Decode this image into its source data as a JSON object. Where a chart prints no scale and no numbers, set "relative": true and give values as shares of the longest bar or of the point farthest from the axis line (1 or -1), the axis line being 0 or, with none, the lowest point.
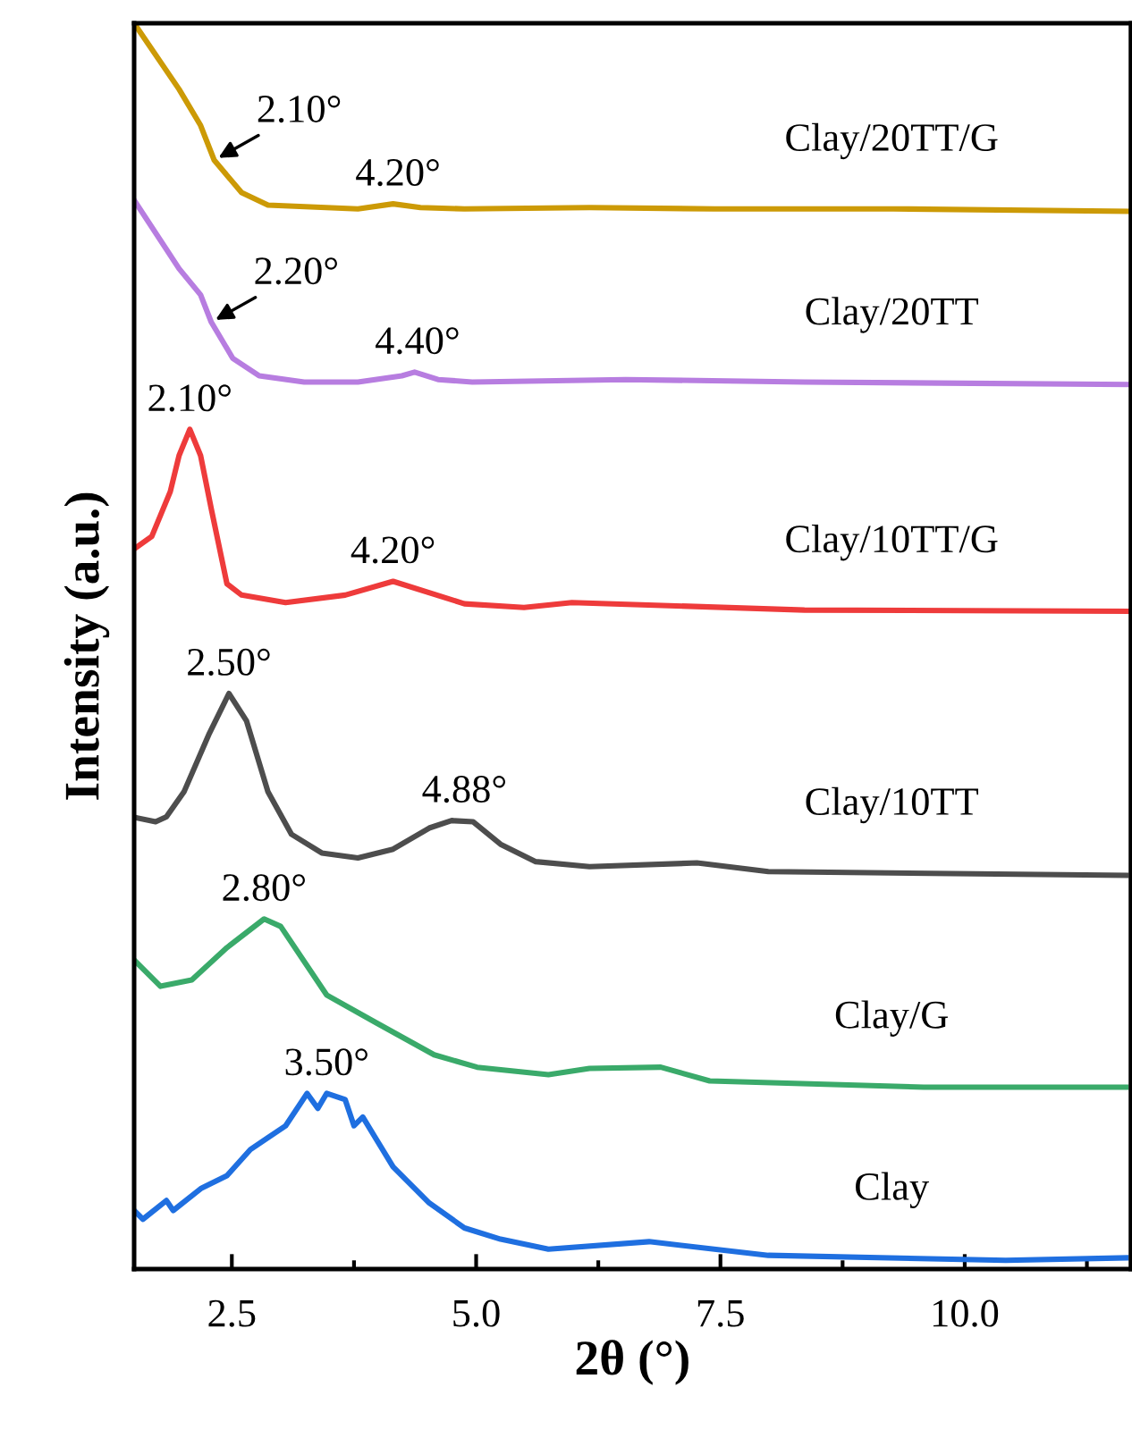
{
  "chart_data": {
    "type": "line",
    "relative": true,
    "xlabel": "2θ (°)",
    "ylabel": "Intensity (a.u.)",
    "xlim": [
      1.5,
      11.7
    ],
    "xticks": [
      {
        "value": 2.5,
        "label": "2.5"
      },
      {
        "value": 3.75,
        "label": null
      },
      {
        "value": 5.0,
        "label": "5.0"
      },
      {
        "value": 6.25,
        "label": null
      },
      {
        "value": 7.5,
        "label": "7.5"
      },
      {
        "value": 8.75,
        "label": null
      },
      {
        "value": 10.0,
        "label": "10.0"
      },
      {
        "value": 11.25,
        "label": null
      }
    ],
    "tick_labels": "x",
    "grid": false,
    "legend": false,
    "marker": "none",
    "line_style": "solid",
    "series": [
      {
        "name": "Clay/20TT/G",
        "color": "#cc9a06",
        "x": [
          1.5,
          1.96,
          2.18,
          2.32,
          2.6,
          2.87,
          3.79,
          4.15,
          4.43,
          4.88,
          6.16,
          7.44,
          9.27,
          11.7
        ],
        "values": [
          1.0,
          0.947,
          0.918,
          0.89,
          0.864,
          0.854,
          0.851,
          0.855,
          0.852,
          0.851,
          0.852,
          0.851,
          0.851,
          0.849
        ]
      },
      {
        "name": "Clay/20TT",
        "color": "#b77de0",
        "x": [
          1.5,
          1.96,
          2.18,
          2.29,
          2.51,
          2.78,
          3.24,
          3.79,
          4.24,
          4.37,
          4.61,
          4.96,
          6.53,
          8.36,
          11.7
        ],
        "values": [
          0.858,
          0.803,
          0.782,
          0.76,
          0.731,
          0.717,
          0.712,
          0.712,
          0.717,
          0.72,
          0.714,
          0.712,
          0.714,
          0.712,
          0.71
        ]
      },
      {
        "name": "Clay/10TT/G",
        "color": "#ee3b3b",
        "x": [
          1.5,
          1.68,
          1.87,
          1.96,
          2.07,
          2.18,
          2.29,
          2.45,
          2.6,
          3.05,
          3.66,
          4.15,
          4.88,
          5.49,
          5.98,
          8.36,
          11.7
        ],
        "values": [
          0.578,
          0.588,
          0.624,
          0.653,
          0.674,
          0.653,
          0.61,
          0.55,
          0.541,
          0.535,
          0.541,
          0.552,
          0.534,
          0.531,
          0.535,
          0.529,
          0.528
        ]
      },
      {
        "name": "Clay/10TT",
        "color": "#4d4d4d",
        "x": [
          1.54,
          1.72,
          1.83,
          2.01,
          2.27,
          2.47,
          2.65,
          2.87,
          3.11,
          3.42,
          3.79,
          4.15,
          4.52,
          4.75,
          4.97,
          5.25,
          5.61,
          6.16,
          7.26,
          7.99,
          11.65
        ],
        "values": [
          0.362,
          0.359,
          0.363,
          0.383,
          0.43,
          0.462,
          0.44,
          0.383,
          0.349,
          0.334,
          0.33,
          0.337,
          0.354,
          0.36,
          0.359,
          0.341,
          0.327,
          0.323,
          0.326,
          0.319,
          0.316
        ]
      },
      {
        "name": "Clay/G",
        "color": "#3aaa6a",
        "x": [
          1.5,
          1.77,
          2.09,
          2.45,
          2.83,
          3.0,
          3.47,
          3.97,
          4.57,
          5.01,
          5.74,
          6.16,
          6.89,
          7.39,
          9.58,
          11.65
        ],
        "values": [
          0.248,
          0.227,
          0.232,
          0.258,
          0.281,
          0.275,
          0.22,
          0.198,
          0.172,
          0.162,
          0.156,
          0.161,
          0.162,
          0.151,
          0.146,
          0.146
        ]
      },
      {
        "name": "Clay",
        "color": "#1f6fe0",
        "x": [
          1.5,
          1.59,
          1.83,
          1.9,
          2.19,
          2.45,
          2.69,
          3.05,
          3.27,
          3.38,
          3.47,
          3.66,
          3.75,
          3.84,
          4.15,
          4.52,
          4.88,
          5.25,
          5.74,
          6.77,
          7.99,
          10.42,
          11.65
        ],
        "values": [
          0.047,
          0.04,
          0.055,
          0.047,
          0.065,
          0.075,
          0.096,
          0.115,
          0.141,
          0.129,
          0.141,
          0.136,
          0.115,
          0.122,
          0.082,
          0.053,
          0.033,
          0.024,
          0.016,
          0.022,
          0.011,
          0.007,
          0.009
        ]
      }
    ],
    "annotations": [
      {
        "text": "2.10°",
        "x": 2.32,
        "y": 0.89
      },
      {
        "text": "4.20°",
        "x": 4.2,
        "y": 0.855
      },
      {
        "text": "2.20°",
        "x": 2.29,
        "y": 0.76
      },
      {
        "text": "4.40°",
        "x": 4.4,
        "y": 0.72
      },
      {
        "text": "2.10°",
        "x": 2.07,
        "y": 0.674
      },
      {
        "text": "4.20°",
        "x": 4.15,
        "y": 0.552
      },
      {
        "text": "2.50°",
        "x": 2.47,
        "y": 0.462
      },
      {
        "text": "4.88°",
        "x": 4.88,
        "y": 0.36
      },
      {
        "text": "2.80°",
        "x": 2.83,
        "y": 0.281
      },
      {
        "text": "3.50°",
        "x": 3.47,
        "y": 0.141
      }
    ]
  }
}
